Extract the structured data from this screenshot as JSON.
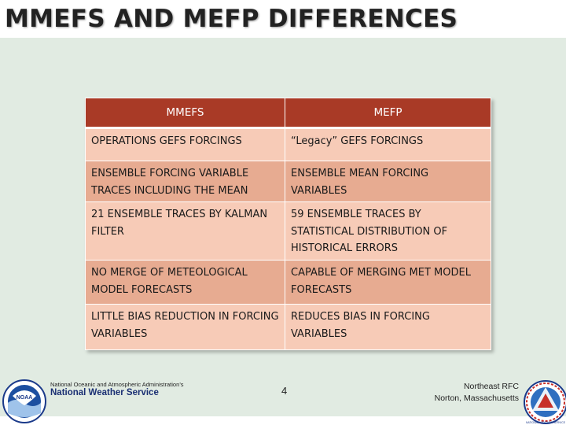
{
  "slide": {
    "title": "MMEFS AND MEFP DIFFERENCES",
    "page_number": "4"
  },
  "table": {
    "headers": [
      "MMEFS",
      "MEFP"
    ],
    "rows": [
      [
        "OPERATIONS GEFS FORCINGS",
        "“Legacy” GEFS FORCINGS"
      ],
      [
        "ENSEMBLE FORCING VARIABLE TRACES INCLUDING THE MEAN",
        "ENSEMBLE MEAN FORCING VARIABLES"
      ],
      [
        "21 ENSEMBLE TRACES BY KALMAN FILTER",
        "59 ENSEMBLE TRACES BY STATISTICAL DISTRIBUTION OF HISTORICAL ERRORS"
      ],
      [
        "NO MERGE OF METEOLOGICAL MODEL FORECASTS",
        "CAPABLE OF MERGING MET MODEL FORECASTS"
      ],
      [
        "LITTLE BIAS REDUCTION IN FORCING VARIABLES",
        "REDUCES BIAS IN FORCING VARIABLES"
      ]
    ]
  },
  "footer": {
    "agency_line": "National Oceanic and Atmospheric Administration’s",
    "service_line": "National Weather Service",
    "office_line": "Northeast RFC",
    "location_line": "Norton, Massachusetts",
    "noaa_logo_text": "NOAA",
    "nws_logo_text": "NATIONAL WEATHER SERVICE"
  },
  "colors": {
    "header_bg": "#a93a26",
    "row_light": "#f7cbb7",
    "row_dark": "#e7ab91",
    "content_bg": "#e1ebe2"
  }
}
